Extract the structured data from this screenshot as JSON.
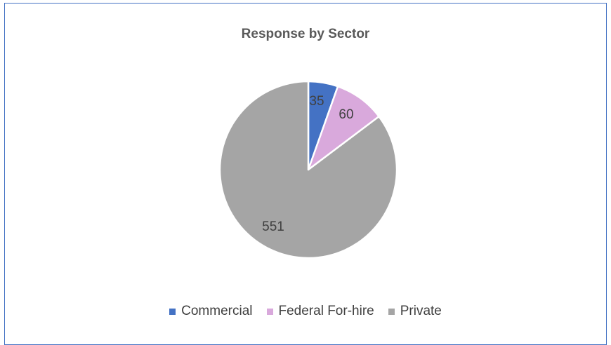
{
  "chart_data": {
    "type": "pie",
    "title": "Response by Sector",
    "categories": [
      "Commercial",
      "Federal For-hire",
      "Private"
    ],
    "values": [
      35,
      60,
      551
    ],
    "data_labels": [
      "35",
      "60",
      "551"
    ],
    "colors": [
      "#4472c4",
      "#d9a9dc",
      "#a5a5a5"
    ],
    "legend_position": "bottom"
  }
}
